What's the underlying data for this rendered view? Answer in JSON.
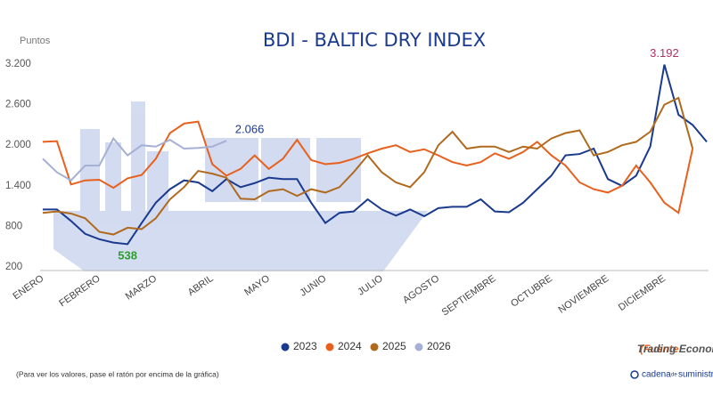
{
  "chart_data": {
    "type": "line",
    "title": "BDI - BALTIC DRY INDEX",
    "y_label": "Puntos",
    "categories": [
      "ENERO",
      null,
      null,
      null,
      "FEBRERO",
      null,
      null,
      null,
      "MARZO",
      null,
      null,
      null,
      "ABRIL",
      null,
      null,
      null,
      "MAYO",
      null,
      null,
      null,
      "JUNIO",
      null,
      null,
      null,
      "JULIO",
      null,
      null,
      null,
      "AGOSTO",
      null,
      null,
      null,
      "SEPTIEMBRE",
      null,
      null,
      null,
      "OCTUBRE",
      null,
      null,
      null,
      "NOVIEMBRE",
      null,
      null,
      null,
      "DICIEMBRE",
      null,
      null,
      null
    ],
    "series": [
      {
        "name": "2023",
        "color": "#1a3a8f",
        "values": [
          1050,
          1050,
          880,
          690,
          610,
          560,
          538,
          850,
          1150,
          1350,
          1480,
          1450,
          1320,
          1500,
          1380,
          1440,
          1520,
          1500,
          1500,
          1150,
          850,
          1000,
          1020,
          1200,
          1050,
          960,
          1050,
          950,
          1070,
          1090,
          1090,
          1200,
          1020,
          1010,
          1150,
          1350,
          1550,
          1850,
          1870,
          1950,
          1500,
          1400,
          1550,
          1980,
          3192,
          2450,
          2300,
          2050
        ]
      },
      {
        "name": "2024",
        "color": "#e8601c",
        "values": [
          2050,
          2060,
          1420,
          1480,
          1490,
          1370,
          1510,
          1560,
          1800,
          2180,
          2320,
          2350,
          1720,
          1550,
          1650,
          1850,
          1650,
          1800,
          2080,
          1780,
          1720,
          1740,
          1800,
          1880,
          1950,
          2000,
          1900,
          1940,
          1850,
          1750,
          1700,
          1750,
          1880,
          1800,
          1900,
          2050,
          1850,
          1700,
          1450,
          1350,
          1300,
          1400,
          1700,
          1450,
          1150,
          1000,
          1950,
          null
        ]
      },
      {
        "name": "2025",
        "color": "#b06a1e",
        "values": [
          1000,
          1020,
          990,
          920,
          720,
          680,
          780,
          760,
          920,
          1200,
          1380,
          1620,
          1580,
          1520,
          1210,
          1200,
          1320,
          1350,
          1250,
          1350,
          1300,
          1380,
          1600,
          1850,
          1600,
          1450,
          1380,
          1600,
          2000,
          2200,
          1950,
          1980,
          1980,
          1900,
          1980,
          1950,
          2100,
          2180,
          2220,
          1850,
          1900,
          2000,
          2050,
          2200,
          2600,
          2700,
          1950,
          null
        ]
      },
      {
        "name": "2026",
        "color": "#a6b0d4",
        "values": [
          1800,
          1600,
          1480,
          1700,
          1700,
          2100,
          1850,
          2000,
          1980,
          2080,
          1950,
          1960,
          1980,
          2066,
          null,
          null,
          null,
          null,
          null,
          null,
          null,
          null,
          null,
          null,
          null,
          null,
          null,
          null,
          null,
          null,
          null,
          null,
          null,
          null,
          null,
          null,
          null,
          null,
          null,
          null,
          null,
          null,
          null,
          null,
          null,
          null,
          null,
          null
        ]
      }
    ],
    "ylim": [
      200,
      3200
    ],
    "yticks": [
      200,
      {
        "value": 800,
        "label": "800"
      },
      {
        "value": 1400,
        "label": "1.400"
      },
      {
        "value": 2000,
        "label": "2.000"
      },
      {
        "value": 2600,
        "label": "2.600"
      },
      {
        "value": 3200,
        "label": "3.200"
      }
    ],
    "annotations": [
      {
        "text": "2.066",
        "color": "#1a3a8f",
        "series": 3,
        "index": 13
      },
      {
        "text": "538",
        "color": "#2e9e2e",
        "series": 0,
        "index": 6
      },
      {
        "text": "3.192",
        "color": "#b03060",
        "series": 0,
        "index": 44
      }
    ],
    "source": {
      "label": "(Fuente:",
      "text": "Trading Economic)"
    },
    "note": "(Para ver los valores, pase el ratón por encima de la gráfica)",
    "logo": [
      "cadena",
      "de",
      "suministro"
    ]
  }
}
